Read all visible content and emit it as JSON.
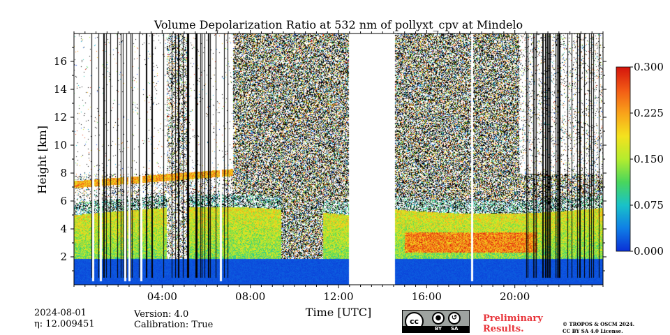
{
  "chart_data": {
    "type": "heatmap",
    "title": "Volume Depolarization Ratio at 532 nm of pollyxt_cpv at Mindelo",
    "xlabel": "Time [UTC]",
    "ylabel": "Height [km]",
    "xlim_hours": [
      0,
      24
    ],
    "ylim_km": [
      0,
      18
    ],
    "xticks": [
      {
        "value": 4,
        "label": "04:00"
      },
      {
        "value": 8,
        "label": "08:00"
      },
      {
        "value": 12,
        "label": "12:00"
      },
      {
        "value": 16,
        "label": "16:00"
      },
      {
        "value": 20,
        "label": "20:00"
      }
    ],
    "yticks": [
      {
        "value": 2,
        "label": "2"
      },
      {
        "value": 4,
        "label": "4"
      },
      {
        "value": 6,
        "label": "6"
      },
      {
        "value": 8,
        "label": "8"
      },
      {
        "value": 10,
        "label": "10"
      },
      {
        "value": 12,
        "label": "12"
      },
      {
        "value": 14,
        "label": "14"
      },
      {
        "value": 16,
        "label": "16"
      }
    ],
    "colorbar": {
      "min": 0.0,
      "max": 0.3,
      "ticks": [
        {
          "value": 0.0,
          "label": "0.000"
        },
        {
          "value": 0.075,
          "label": "0.075"
        },
        {
          "value": 0.15,
          "label": "0.150"
        },
        {
          "value": 0.225,
          "label": "0.225"
        },
        {
          "value": 0.3,
          "label": "0.300"
        }
      ],
      "colormap": [
        "#0a2fd6",
        "#0f7fe6",
        "#19c2c8",
        "#49d65c",
        "#b4ec2e",
        "#f4e21e",
        "#f9a21a",
        "#f25a15",
        "#d4140c"
      ]
    },
    "no_data_gaps_hours": [
      [
        12.45,
        14.55
      ]
    ],
    "layers_description_values": {
      "surface_depol": 0.02,
      "dust_layer_top_km": [
        5.0,
        5.6
      ],
      "cloud_top_early_km": 8.0
    }
  },
  "meta": {
    "date": "2024-08-01",
    "eta": "η: 12.009451",
    "version": "Version: 4.0",
    "calibration": "Calibration: True"
  },
  "license": {
    "badge_cc": "cc",
    "badge_by": "BY",
    "badge_sa": "SA",
    "preliminary_line1": "Preliminary",
    "preliminary_line2": "Results.",
    "copyright_line1": "© TROPOS & OSCM 2024.",
    "copyright_line2": "CC BY SA 4.0 License."
  }
}
